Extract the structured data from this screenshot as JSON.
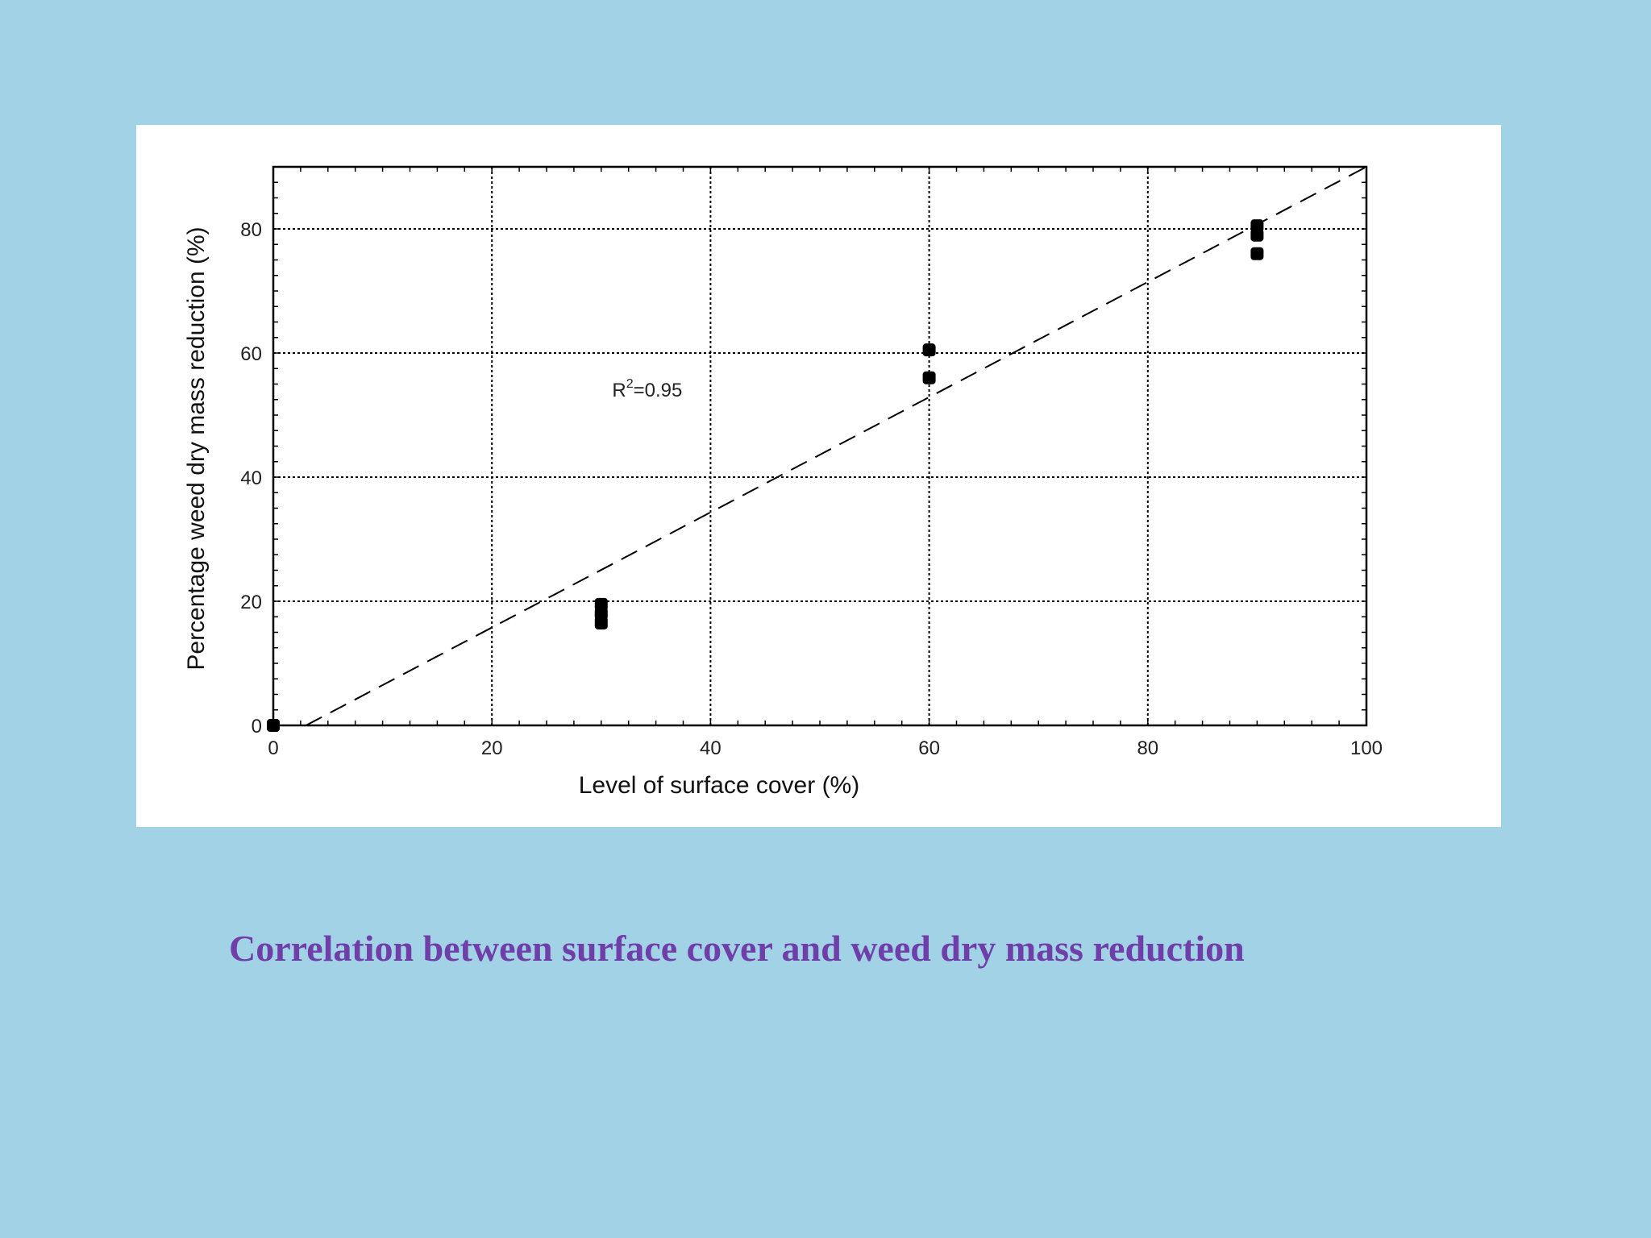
{
  "page": {
    "background_color": "#a2d2e6",
    "caption": "Correlation between surface cover and weed dry mass reduction",
    "caption_color": "#6f3ea8"
  },
  "chart_data": {
    "type": "scatter",
    "title": "",
    "xlabel": "Level of surface cover (%)",
    "ylabel": "Percentage weed dry mass reduction (%)",
    "xlim": [
      0,
      100
    ],
    "ylim": [
      0,
      90
    ],
    "x_ticks": [
      0,
      20,
      40,
      60,
      80,
      100
    ],
    "y_ticks": [
      0,
      20,
      40,
      60,
      80
    ],
    "grid": true,
    "legend": "none",
    "series": [
      {
        "points": [
          {
            "x": 0,
            "y": 0
          },
          {
            "x": 30,
            "y": 16.5
          },
          {
            "x": 30,
            "y": 18
          },
          {
            "x": 30,
            "y": 19.5
          },
          {
            "x": 60,
            "y": 56
          },
          {
            "x": 60,
            "y": 60.5
          },
          {
            "x": 90,
            "y": 76
          },
          {
            "x": 90,
            "y": 79
          },
          {
            "x": 90,
            "y": 80.5
          }
        ]
      }
    ],
    "fit_line": {
      "style": "dashed",
      "x": [
        3,
        100
      ],
      "y": [
        0,
        90
      ]
    },
    "annotation": {
      "text_prefix": "R",
      "superscript": "2",
      "text_suffix": "=0.95",
      "x": 31,
      "y": 53
    },
    "marker_color": "#000000",
    "grid_color": "#000000"
  }
}
